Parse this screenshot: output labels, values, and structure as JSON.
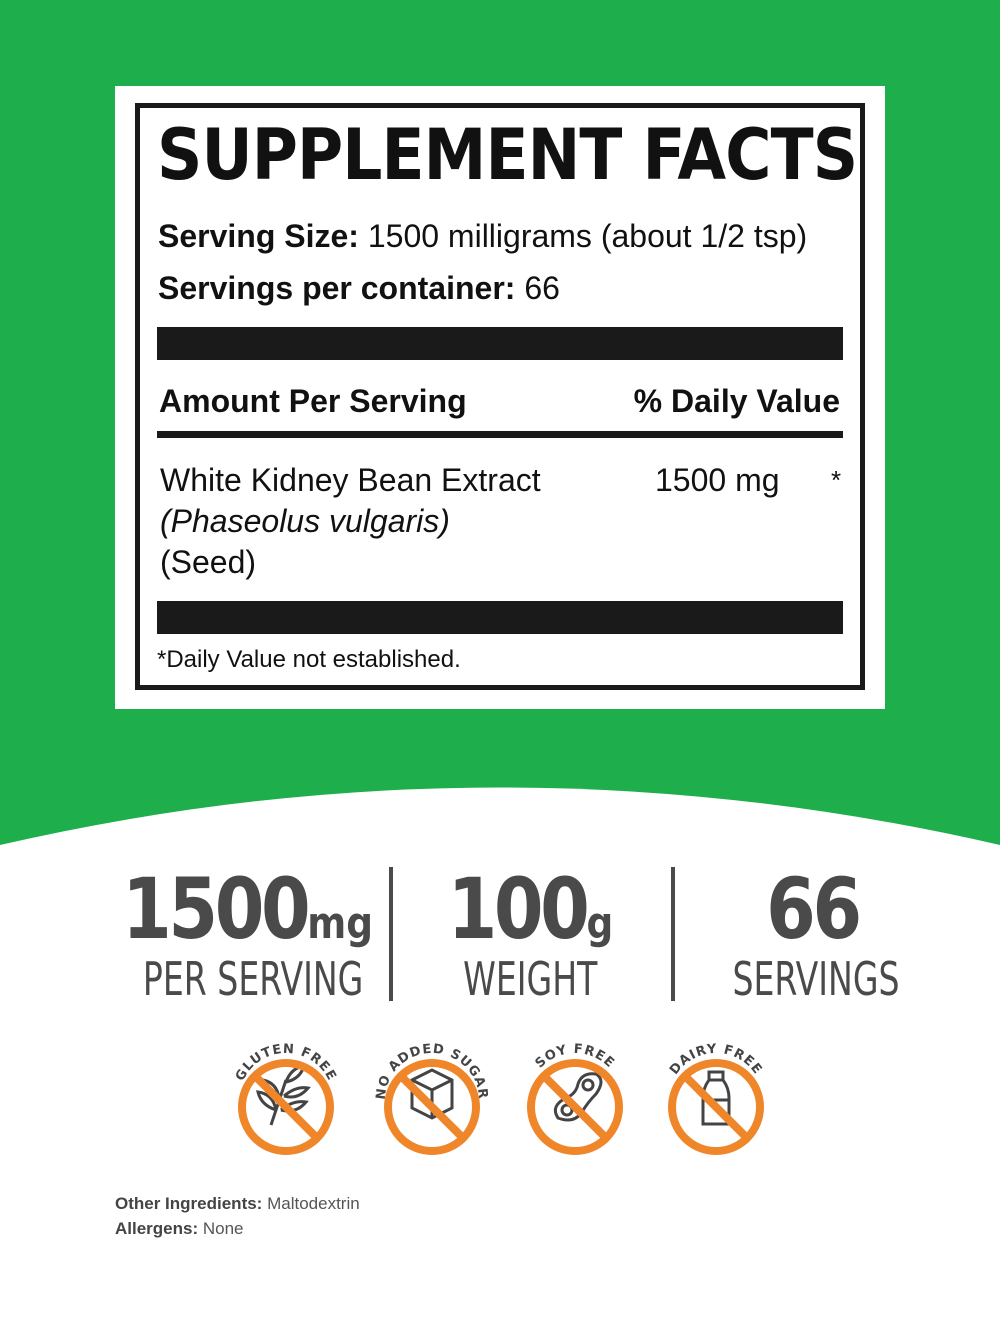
{
  "colors": {
    "green": "#1eae4b",
    "orange": "#f0862a",
    "dark": "#4a4a4a"
  },
  "facts": {
    "title": "SUPPLEMENT FACTS",
    "serving_size_label": "Serving Size:",
    "serving_size_value": "1500 milligrams (about 1/2 tsp)",
    "servings_label": "Servings per container:",
    "servings_value": "66",
    "amount_header": "Amount Per Serving",
    "dv_header": "% Daily Value",
    "ingredient": {
      "name": "White Kidney Bean Extract",
      "latin": "(Phaseolus vulgaris)",
      "part": "(Seed)",
      "amount": "1500 mg",
      "dv": "*"
    },
    "footnote": "*Daily Value not established."
  },
  "stats": [
    {
      "value": "1500",
      "unit": "mg",
      "label": "PER SERVING"
    },
    {
      "value": "100",
      "unit": "g",
      "label": "WEIGHT"
    },
    {
      "value": "66",
      "unit": "",
      "label": "SERVINGS"
    }
  ],
  "badges": [
    {
      "text": "GLUTEN FREE",
      "icon": "wheat-icon"
    },
    {
      "text": "NO ADDED SUGAR",
      "icon": "sugar-cube-icon"
    },
    {
      "text": "SOY FREE",
      "icon": "soybean-icon"
    },
    {
      "text": "DAIRY FREE",
      "icon": "milk-bottle-icon"
    }
  ],
  "footer": {
    "other_label": "Other Ingredients:",
    "other_value": "Maltodextrin",
    "allergens_label": "Allergens:",
    "allergens_value": "None"
  }
}
